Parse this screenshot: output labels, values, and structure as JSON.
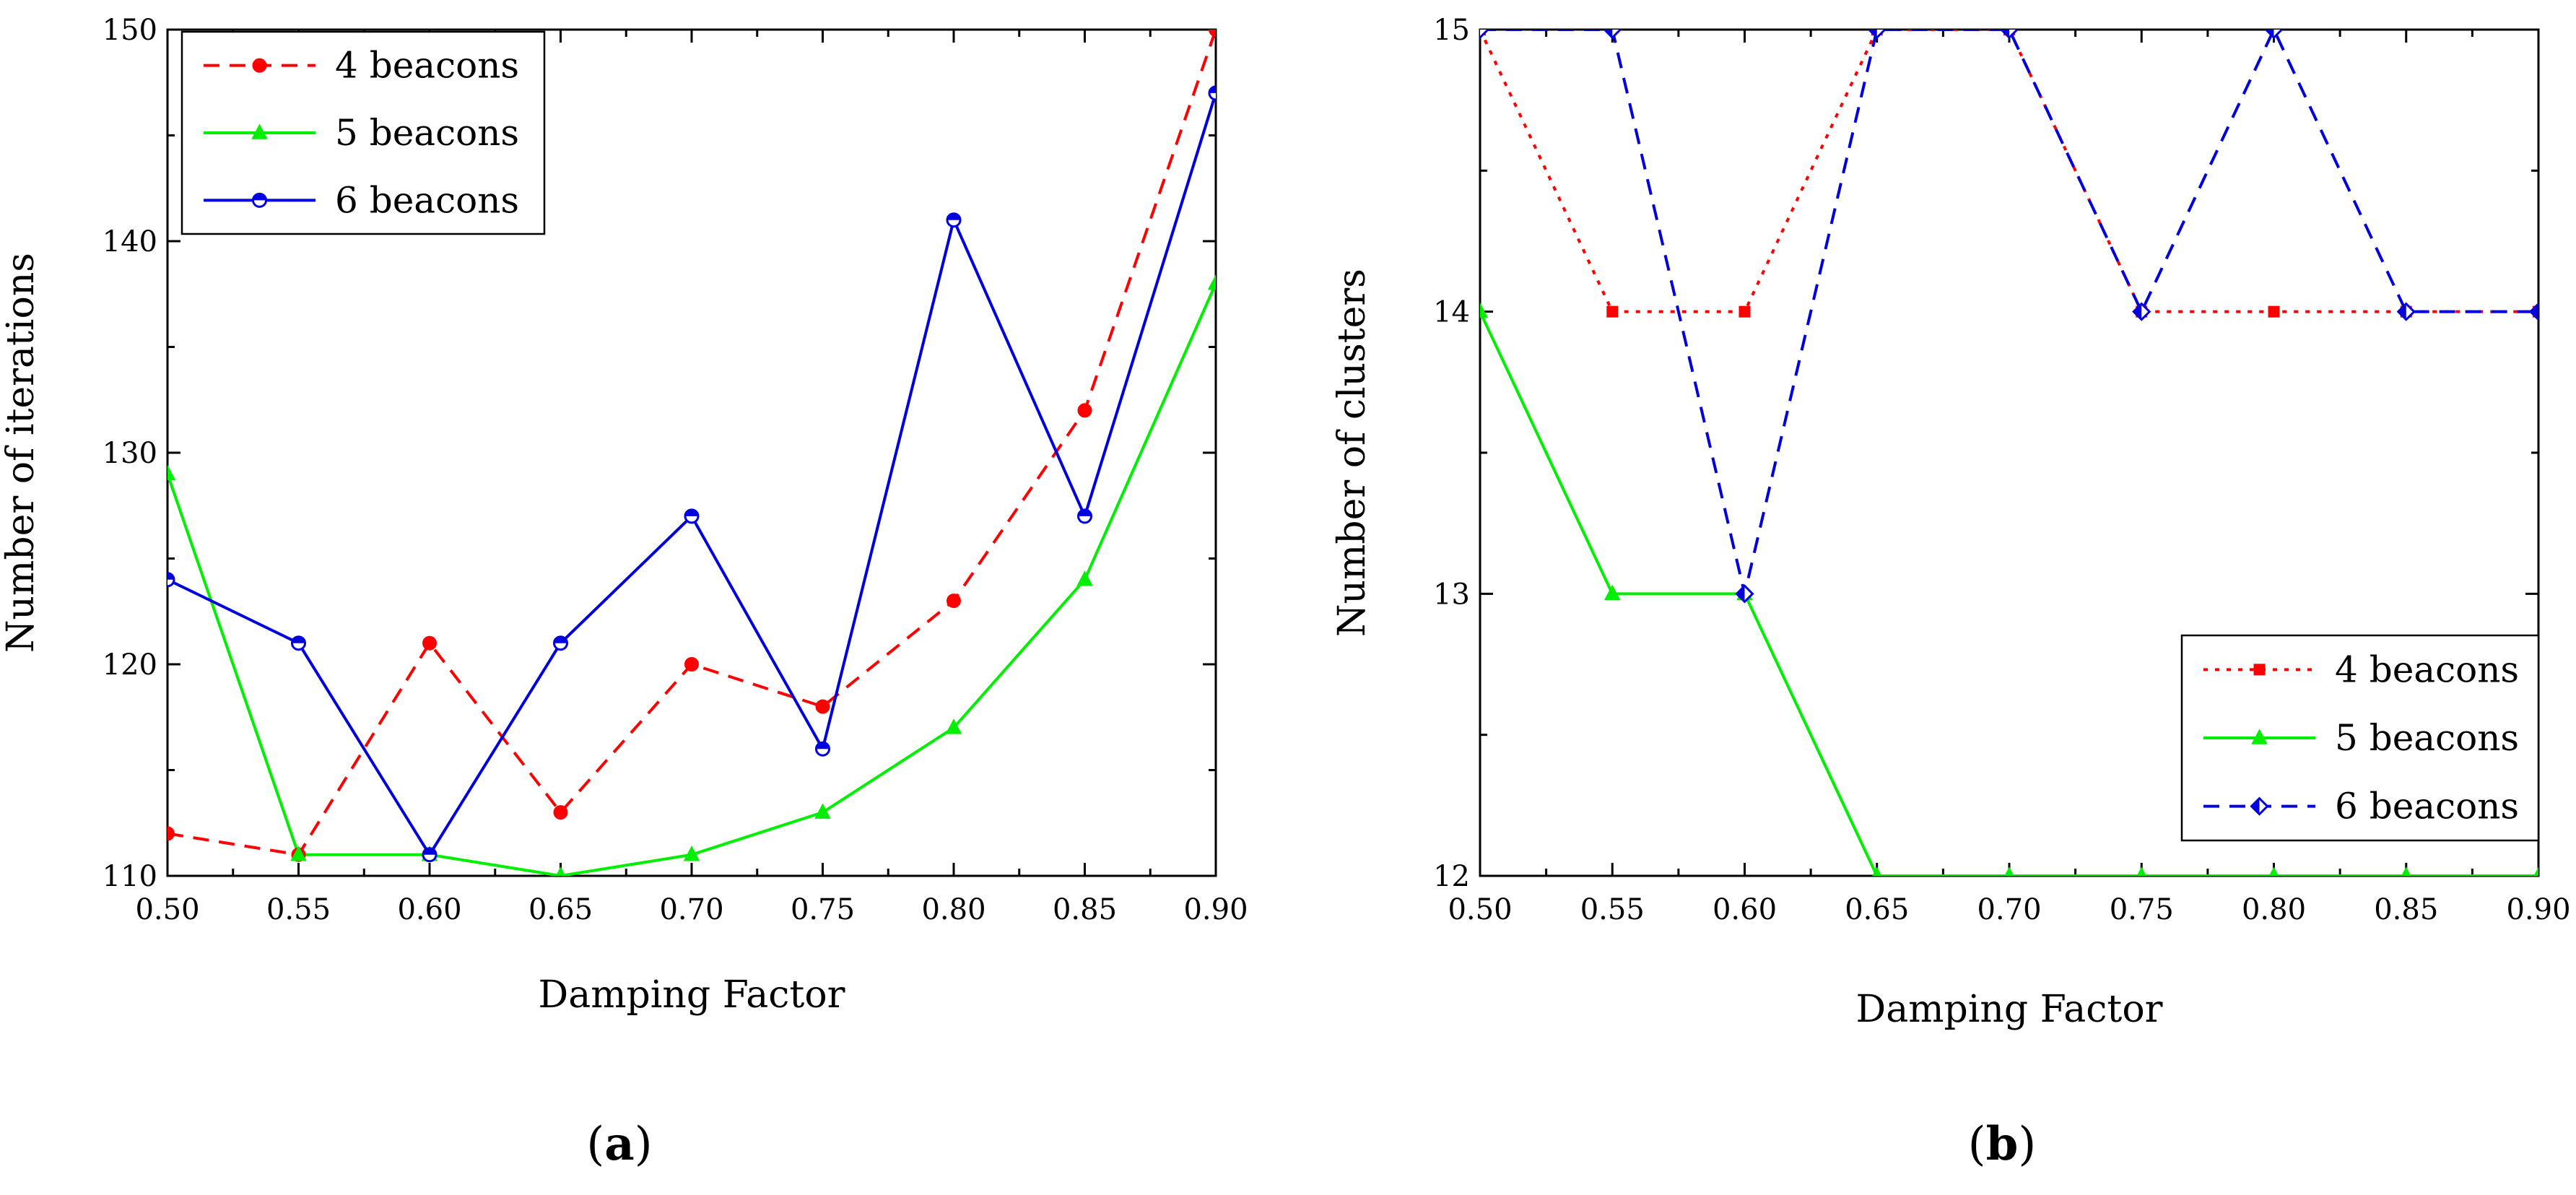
{
  "chart_data": [
    {
      "type": "line",
      "panel_label": "a",
      "xlabel": "Damping Factor",
      "ylabel": "Number of iterations",
      "x": [
        0.5,
        0.55,
        0.6,
        0.65,
        0.7,
        0.75,
        0.8,
        0.85,
        0.9
      ],
      "x_tick_labels": [
        "0.50",
        "0.55",
        "0.60",
        "0.65",
        "0.70",
        "0.75",
        "0.80",
        "0.85",
        "0.90"
      ],
      "xlim": [
        0.5,
        0.9
      ],
      "ylim": [
        110,
        150
      ],
      "y_ticks": [
        110,
        120,
        130,
        140,
        150
      ],
      "y_tick_labels": [
        "110",
        "120",
        "130",
        "140",
        "150"
      ],
      "legend_position": "top-left",
      "series": [
        {
          "name": "4 beacons",
          "color": "#ff0000",
          "dash": "dashed",
          "marker": "circle",
          "values": [
            112,
            111,
            121,
            113,
            120,
            118,
            123,
            132,
            150
          ]
        },
        {
          "name": "5 beacons",
          "color": "#00ee00",
          "dash": "solid",
          "marker": "triangle",
          "values": [
            129,
            111,
            111,
            110,
            111,
            113,
            117,
            124,
            138
          ]
        },
        {
          "name": "6 beacons",
          "color": "#0000dd",
          "dash": "solid",
          "marker": "half-circle",
          "values": [
            124,
            121,
            111,
            121,
            127,
            116,
            141,
            127,
            147
          ]
        }
      ]
    },
    {
      "type": "line",
      "panel_label": "b",
      "xlabel": "Damping Factor",
      "ylabel": "Number of clusters",
      "x": [
        0.5,
        0.55,
        0.6,
        0.65,
        0.7,
        0.75,
        0.8,
        0.85,
        0.9
      ],
      "x_tick_labels": [
        "0.50",
        "0.55",
        "0.60",
        "0.65",
        "0.70",
        "0.75",
        "0.80",
        "0.85",
        "0.90"
      ],
      "xlim": [
        0.5,
        0.9
      ],
      "ylim": [
        12,
        15
      ],
      "y_ticks": [
        12,
        13,
        14,
        15
      ],
      "y_tick_labels": [
        "12",
        "13",
        "14",
        "15"
      ],
      "legend_position": "bottom-right",
      "series": [
        {
          "name": "4 beacons",
          "color": "#ff0000",
          "dash": "dotted",
          "marker": "square",
          "values": [
            15,
            14,
            14,
            15,
            15,
            14,
            14,
            14,
            14
          ]
        },
        {
          "name": "5 beacons",
          "color": "#00ee00",
          "dash": "solid",
          "marker": "triangle",
          "values": [
            14,
            13,
            13,
            12,
            12,
            12,
            12,
            12,
            12
          ]
        },
        {
          "name": "6 beacons",
          "color": "#0000dd",
          "dash": "dashed",
          "marker": "half-diamond",
          "values": [
            15,
            15,
            13,
            15,
            15,
            14,
            15,
            14,
            14
          ]
        }
      ]
    }
  ]
}
